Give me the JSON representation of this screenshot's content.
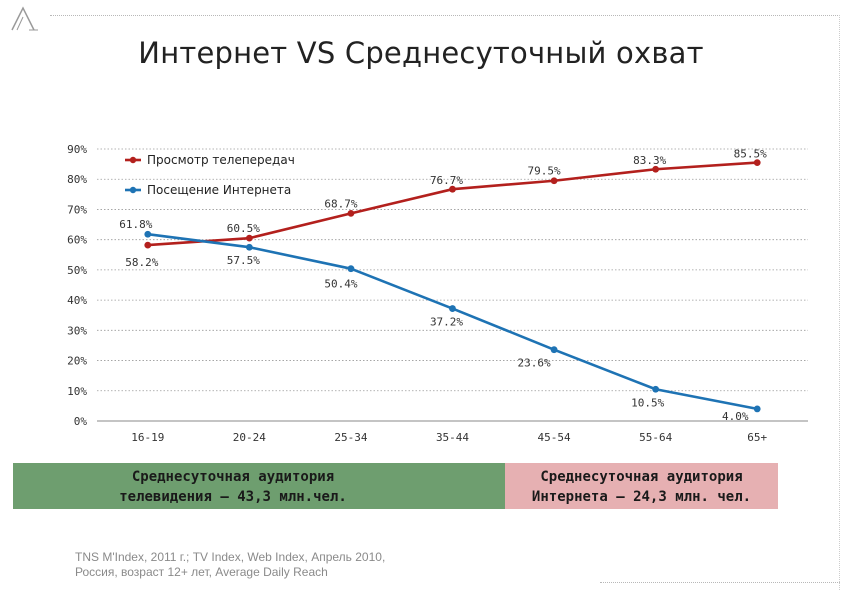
{
  "slide": {
    "title": "Интернет VS Среднесуточный охват",
    "source_line1": "TNS M'Index, 2011 г.; TV Index, Web Index, Апрель 2010,",
    "source_line2": "Россия, возраст 12+ лет, Average Daily Reach"
  },
  "boxes": {
    "tv_line1": "Среднесуточная аудитория",
    "tv_line2": "телевидения – 43,3 млн.чел.",
    "internet_line1": "Среднесуточная аудитория",
    "internet_line2": "Интернета – 24,3 млн. чел."
  },
  "colors": {
    "tv_series": "#b3201d",
    "internet_series": "#1e73b4",
    "tv_box": "#6e9e6f",
    "internet_box": "#e6b0b2",
    "grid": "#9a9a9a"
  },
  "chart_data": {
    "type": "line",
    "title": "Интернет VS Среднесуточный охват",
    "xlabel": "",
    "ylabel": "",
    "categories": [
      "16-19",
      "20-24",
      "25-34",
      "35-44",
      "45-54",
      "55-64",
      "65+"
    ],
    "ylim": [
      0,
      90
    ],
    "yticks": [
      0,
      10,
      20,
      30,
      40,
      50,
      60,
      70,
      80,
      90
    ],
    "ytick_labels": [
      "0%",
      "10%",
      "20%",
      "30%",
      "40%",
      "50%",
      "60%",
      "70%",
      "80%",
      "90%"
    ],
    "grid": true,
    "legend_position": "top-left",
    "series": [
      {
        "name": "Просмотр телепередач",
        "color": "#b3201d",
        "values": [
          58.2,
          60.5,
          68.7,
          76.7,
          79.5,
          83.3,
          85.5
        ],
        "labels": [
          "58.2%",
          "60.5%",
          "68.7%",
          "76.7%",
          "79.5%",
          "83.3%",
          "85.5%"
        ]
      },
      {
        "name": "Посещение Интернета",
        "color": "#1e73b4",
        "values": [
          61.8,
          57.5,
          50.4,
          37.2,
          23.6,
          10.5,
          4.0
        ],
        "labels": [
          "61.8%",
          "57.5%",
          "50.4%",
          "37.2%",
          "23.6%",
          "10.5%",
          "4.0%"
        ]
      }
    ]
  }
}
